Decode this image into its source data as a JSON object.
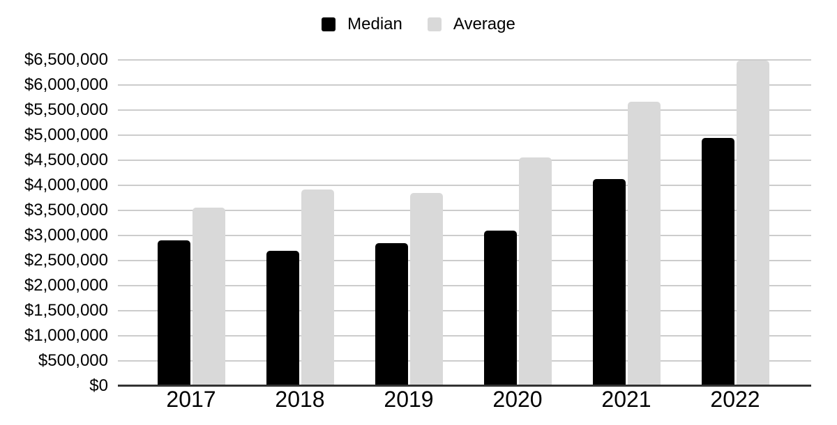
{
  "page": {
    "background": "#ffffff",
    "text_color": "#000000"
  },
  "legend": {
    "position": "top-center",
    "items": [
      {
        "label": "Median",
        "color": "#000000"
      },
      {
        "label": "Average",
        "color": "#d9d9d9"
      }
    ]
  },
  "chart_data": {
    "type": "bar",
    "title": "",
    "xlabel": "",
    "ylabel": "",
    "categories": [
      "2017",
      "2018",
      "2019",
      "2020",
      "2021",
      "2022"
    ],
    "series": [
      {
        "name": "Median",
        "color": "#000000",
        "values": [
          2900000,
          2690000,
          2850000,
          3100000,
          4120000,
          4950000
        ]
      },
      {
        "name": "Average",
        "color": "#d9d9d9",
        "values": [
          3550000,
          3920000,
          3850000,
          4550000,
          5670000,
          6480000
        ]
      }
    ],
    "ylim": [
      0,
      6500000
    ],
    "ytick_step": 500000,
    "ytick_labels": [
      "$0",
      "$500,000",
      "$1,000,000",
      "$1,500,000",
      "$2,000,000",
      "$2,500,000",
      "$3,000,000",
      "$3,500,000",
      "$4,000,000",
      "$4,500,000",
      "$5,000,000",
      "$5,500,000",
      "$6,000,000",
      "$6,500,000"
    ],
    "grid": true,
    "gridline_color": "#cccccc",
    "axis_color": "#333333",
    "legend_position": "top"
  }
}
